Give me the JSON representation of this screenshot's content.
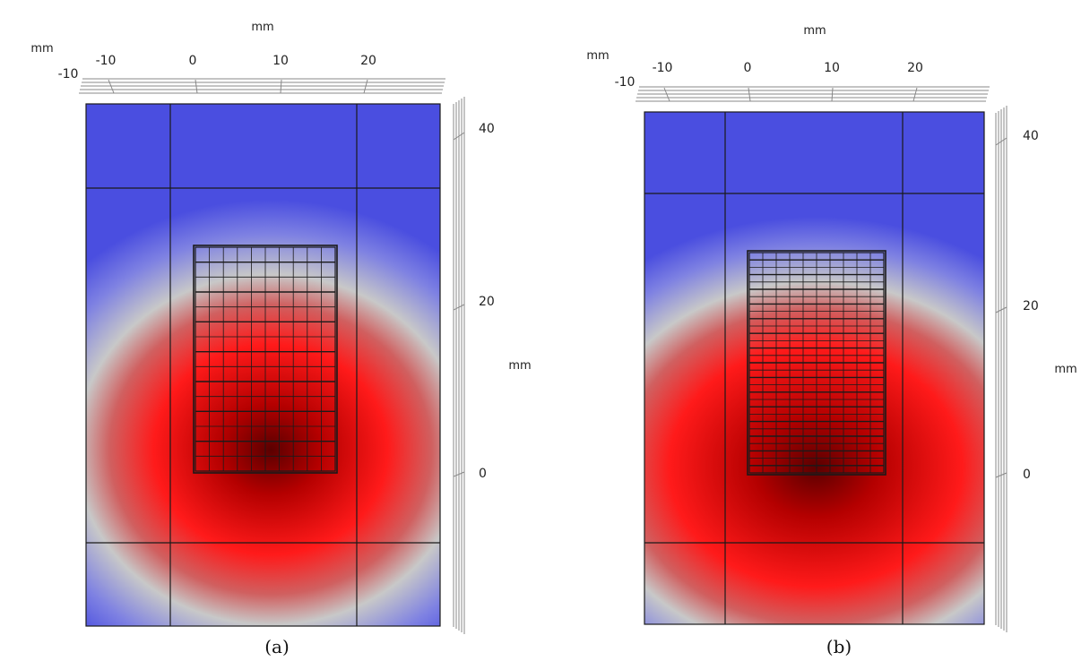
{
  "panels": [
    {
      "id": "a",
      "caption": "(a)",
      "unit_top": "mm",
      "unit_left": "mm",
      "unit_right": "mm",
      "x_ticks": [
        "-10",
        "0",
        "10",
        "20"
      ],
      "x_axis_corner_label": "-10",
      "y_ticks": [
        "40",
        "20",
        "0"
      ],
      "coil_rows": 15,
      "coil_cols": 10
    },
    {
      "id": "b",
      "caption": "(b)",
      "unit_top": "mm",
      "unit_left": "mm",
      "unit_right": "mm",
      "x_ticks": [
        "-10",
        "0",
        "10",
        "20"
      ],
      "x_axis_corner_label": "-10",
      "y_ticks": [
        "40",
        "20",
        "0"
      ],
      "coil_rows": 30,
      "coil_cols": 10
    }
  ],
  "colors": {
    "hot_core": "#5a0000",
    "hot": "#ff1a1a",
    "warm": "#d06060",
    "neutral": "#c8c8c8",
    "cold": "#4a4ee0",
    "frame": "#1a1a1a"
  }
}
